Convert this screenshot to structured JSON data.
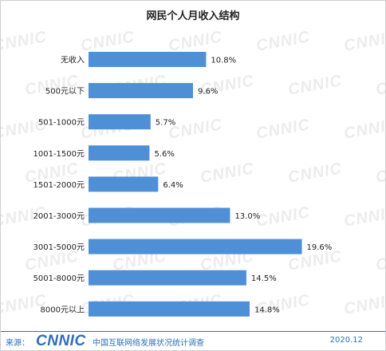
{
  "watermark_text": "CNNIC",
  "chart_data": {
    "type": "bar",
    "orientation": "horizontal",
    "title": "网民个人月收入结构",
    "categories": [
      "无收入",
      "500元以下",
      "501-1000元",
      "1001-1500元",
      "1501-2000元",
      "2001-3000元",
      "3001-5000元",
      "5001-8000元",
      "8000元以上"
    ],
    "values": [
      10.8,
      9.6,
      5.7,
      5.6,
      6.4,
      13.0,
      19.6,
      14.5,
      14.8
    ],
    "value_labels": [
      "10.8%",
      "9.6%",
      "5.7%",
      "5.6%",
      "6.4%",
      "13.0%",
      "19.6%",
      "14.5%",
      "14.8%"
    ],
    "unit": "%",
    "xlim": [
      0,
      20
    ],
    "grid": false,
    "bar_color": "#4f8fd6"
  },
  "footer": {
    "source_label": "来源：",
    "logo_text": "CNNIC",
    "org": "中国互联网络发展状况统计调查",
    "date": "2020.12"
  }
}
